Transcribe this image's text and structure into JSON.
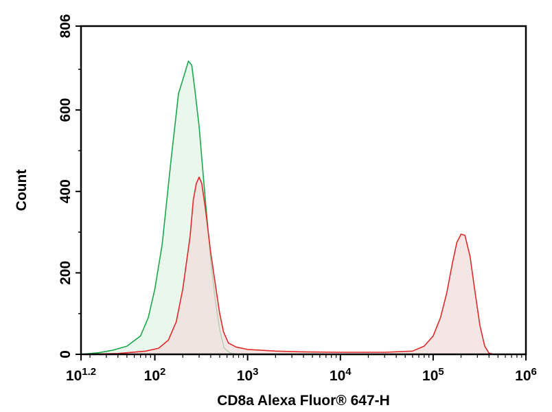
{
  "chart_data": {
    "type": "area",
    "title": "",
    "xlabel": "CD8a Alexa Fluor® 647-H",
    "ylabel": "Count",
    "x_scale": "log",
    "xlim": [
      16,
      1000000
    ],
    "ylim": [
      0,
      806
    ],
    "x_ticks": [
      {
        "value": 16,
        "base": "10",
        "exp": "1.2"
      },
      {
        "value": 100,
        "base": "10",
        "exp": "2"
      },
      {
        "value": 1000,
        "base": "10",
        "exp": "3"
      },
      {
        "value": 10000,
        "base": "10",
        "exp": "4"
      },
      {
        "value": 100000,
        "base": "10",
        "exp": "5"
      },
      {
        "value": 1000000,
        "base": "10",
        "exp": "6"
      }
    ],
    "y_ticks": [
      0,
      200,
      400,
      600,
      806
    ],
    "grid": false,
    "series": [
      {
        "color": "#19a84a",
        "fill": "#e2f4e6",
        "points": [
          [
            16,
            0
          ],
          [
            25,
            4
          ],
          [
            35,
            10
          ],
          [
            50,
            20
          ],
          [
            70,
            45
          ],
          [
            85,
            90
          ],
          [
            100,
            160
          ],
          [
            120,
            270
          ],
          [
            150,
            480
          ],
          [
            180,
            640
          ],
          [
            210,
            690
          ],
          [
            230,
            720
          ],
          [
            250,
            710
          ],
          [
            270,
            650
          ],
          [
            300,
            560
          ],
          [
            350,
            380
          ],
          [
            400,
            230
          ],
          [
            450,
            130
          ],
          [
            500,
            60
          ],
          [
            560,
            15
          ],
          [
            650,
            3
          ],
          [
            800,
            0
          ]
        ]
      },
      {
        "color": "#e02828",
        "fill": "#f2dede",
        "points": [
          [
            16,
            0
          ],
          [
            40,
            2
          ],
          [
            80,
            8
          ],
          [
            110,
            15
          ],
          [
            140,
            35
          ],
          [
            170,
            80
          ],
          [
            200,
            160
          ],
          [
            240,
            290
          ],
          [
            260,
            380
          ],
          [
            280,
            420
          ],
          [
            300,
            435
          ],
          [
            320,
            420
          ],
          [
            350,
            360
          ],
          [
            400,
            250
          ],
          [
            450,
            170
          ],
          [
            500,
            100
          ],
          [
            550,
            55
          ],
          [
            620,
            28
          ],
          [
            750,
            18
          ],
          [
            1000,
            12
          ],
          [
            2000,
            8
          ],
          [
            4000,
            6
          ],
          [
            10000,
            5
          ],
          [
            30000,
            5
          ],
          [
            60000,
            8
          ],
          [
            80000,
            20
          ],
          [
            100000,
            45
          ],
          [
            120000,
            90
          ],
          [
            140000,
            150
          ],
          [
            160000,
            220
          ],
          [
            180000,
            275
          ],
          [
            200000,
            295
          ],
          [
            220000,
            292
          ],
          [
            250000,
            240
          ],
          [
            280000,
            160
          ],
          [
            320000,
            70
          ],
          [
            360000,
            20
          ],
          [
            400000,
            3
          ],
          [
            450000,
            0
          ]
        ]
      }
    ]
  }
}
